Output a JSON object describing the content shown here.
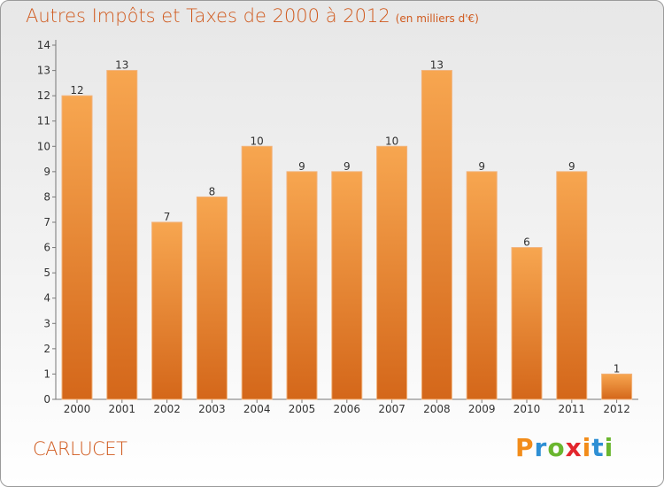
{
  "title": "Autres Impôts et Taxes de 2000 à 2012",
  "subtitle": "(en milliers d'€)",
  "commune": "CARLUCET",
  "logo": {
    "letters": [
      "P",
      "r",
      "o",
      "x",
      "i",
      "t",
      "i"
    ],
    "colors": [
      "#f28c1a",
      "#2e8fd4",
      "#6ab62f",
      "#e3262d",
      "#f28c1a",
      "#2e8fd4",
      "#6ab62f"
    ]
  },
  "colors": {
    "bar_light": "#f7a650",
    "bar_dark": "#d4671a",
    "text_accent": "#d05a1e"
  },
  "chart_data": {
    "type": "bar",
    "title": "Autres Impôts et Taxes de 2000 à 2012",
    "subtitle": "(en milliers d'€)",
    "categories": [
      "2000",
      "2001",
      "2002",
      "2003",
      "2004",
      "2005",
      "2006",
      "2007",
      "2008",
      "2009",
      "2010",
      "2011",
      "2012"
    ],
    "values": [
      12,
      13,
      7,
      8,
      10,
      9,
      9,
      10,
      13,
      9,
      6,
      9,
      1
    ],
    "ylim": [
      0,
      14
    ],
    "yticks": [
      0,
      1,
      2,
      3,
      4,
      5,
      6,
      7,
      8,
      9,
      10,
      11,
      12,
      13,
      14
    ],
    "grid": false
  }
}
